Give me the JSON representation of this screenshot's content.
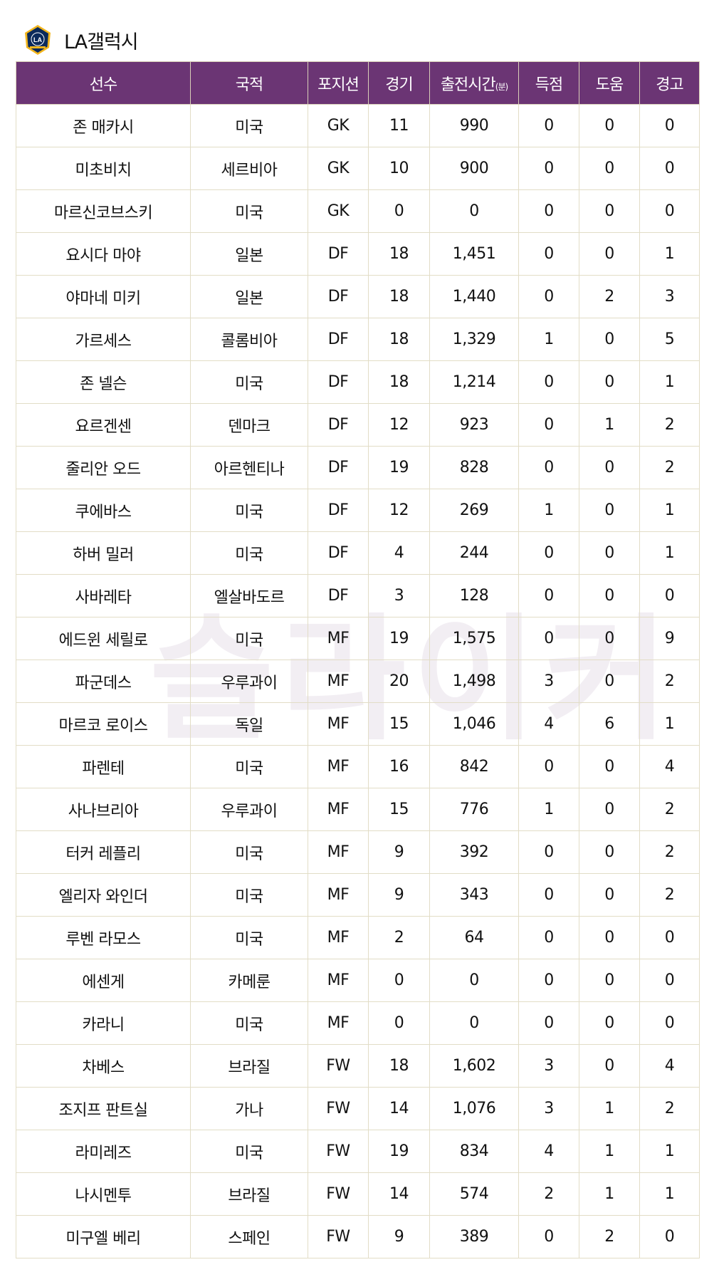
{
  "team": {
    "name": "LA갤럭시",
    "logo_text": "LA GALAXY"
  },
  "colors": {
    "header_bg": "#6b3574",
    "border": "#e2ddc6"
  },
  "watermark": "슬라이커",
  "table": {
    "headers": [
      "선수",
      "국적",
      "포지션",
      "경기",
      "출전시간",
      "득점",
      "도움",
      "경고"
    ],
    "minutes_unit": "(분)",
    "rows": [
      [
        "존 매카시",
        "미국",
        "GK",
        "11",
        "990",
        "0",
        "0",
        "0"
      ],
      [
        "미초비치",
        "세르비아",
        "GK",
        "10",
        "900",
        "0",
        "0",
        "0"
      ],
      [
        "마르신코브스키",
        "미국",
        "GK",
        "0",
        "0",
        "0",
        "0",
        "0"
      ],
      [
        "요시다 마야",
        "일본",
        "DF",
        "18",
        "1,451",
        "0",
        "0",
        "1"
      ],
      [
        "야마네 미키",
        "일본",
        "DF",
        "18",
        "1,440",
        "0",
        "2",
        "3"
      ],
      [
        "가르세스",
        "콜롬비아",
        "DF",
        "18",
        "1,329",
        "1",
        "0",
        "5"
      ],
      [
        "존 넬슨",
        "미국",
        "DF",
        "18",
        "1,214",
        "0",
        "0",
        "1"
      ],
      [
        "요르겐센",
        "덴마크",
        "DF",
        "12",
        "923",
        "0",
        "1",
        "2"
      ],
      [
        "줄리안 오드",
        "아르헨티나",
        "DF",
        "19",
        "828",
        "0",
        "0",
        "2"
      ],
      [
        "쿠에바스",
        "미국",
        "DF",
        "12",
        "269",
        "1",
        "0",
        "1"
      ],
      [
        "하버 밀러",
        "미국",
        "DF",
        "4",
        "244",
        "0",
        "0",
        "1"
      ],
      [
        "사바레타",
        "엘살바도르",
        "DF",
        "3",
        "128",
        "0",
        "0",
        "0"
      ],
      [
        "에드윈 세릴로",
        "미국",
        "MF",
        "19",
        "1,575",
        "0",
        "0",
        "9"
      ],
      [
        "파군데스",
        "우루과이",
        "MF",
        "20",
        "1,498",
        "3",
        "0",
        "2"
      ],
      [
        "마르코 로이스",
        "독일",
        "MF",
        "15",
        "1,046",
        "4",
        "6",
        "1"
      ],
      [
        "파렌테",
        "미국",
        "MF",
        "16",
        "842",
        "0",
        "0",
        "4"
      ],
      [
        "사나브리아",
        "우루과이",
        "MF",
        "15",
        "776",
        "1",
        "0",
        "2"
      ],
      [
        "터커 레플리",
        "미국",
        "MF",
        "9",
        "392",
        "0",
        "0",
        "2"
      ],
      [
        "엘리자 와인더",
        "미국",
        "MF",
        "9",
        "343",
        "0",
        "0",
        "2"
      ],
      [
        "루벤 라모스",
        "미국",
        "MF",
        "2",
        "64",
        "0",
        "0",
        "0"
      ],
      [
        "에센게",
        "카메룬",
        "MF",
        "0",
        "0",
        "0",
        "0",
        "0"
      ],
      [
        "카라니",
        "미국",
        "MF",
        "0",
        "0",
        "0",
        "0",
        "0"
      ],
      [
        "차베스",
        "브라질",
        "FW",
        "18",
        "1,602",
        "3",
        "0",
        "4"
      ],
      [
        "조지프 판트실",
        "가나",
        "FW",
        "14",
        "1,076",
        "3",
        "1",
        "2"
      ],
      [
        "라미레즈",
        "미국",
        "FW",
        "19",
        "834",
        "4",
        "1",
        "1"
      ],
      [
        "나시멘투",
        "브라질",
        "FW",
        "14",
        "574",
        "2",
        "1",
        "1"
      ],
      [
        "미구엘 베리",
        "스페인",
        "FW",
        "9",
        "389",
        "0",
        "2",
        "0"
      ]
    ]
  }
}
